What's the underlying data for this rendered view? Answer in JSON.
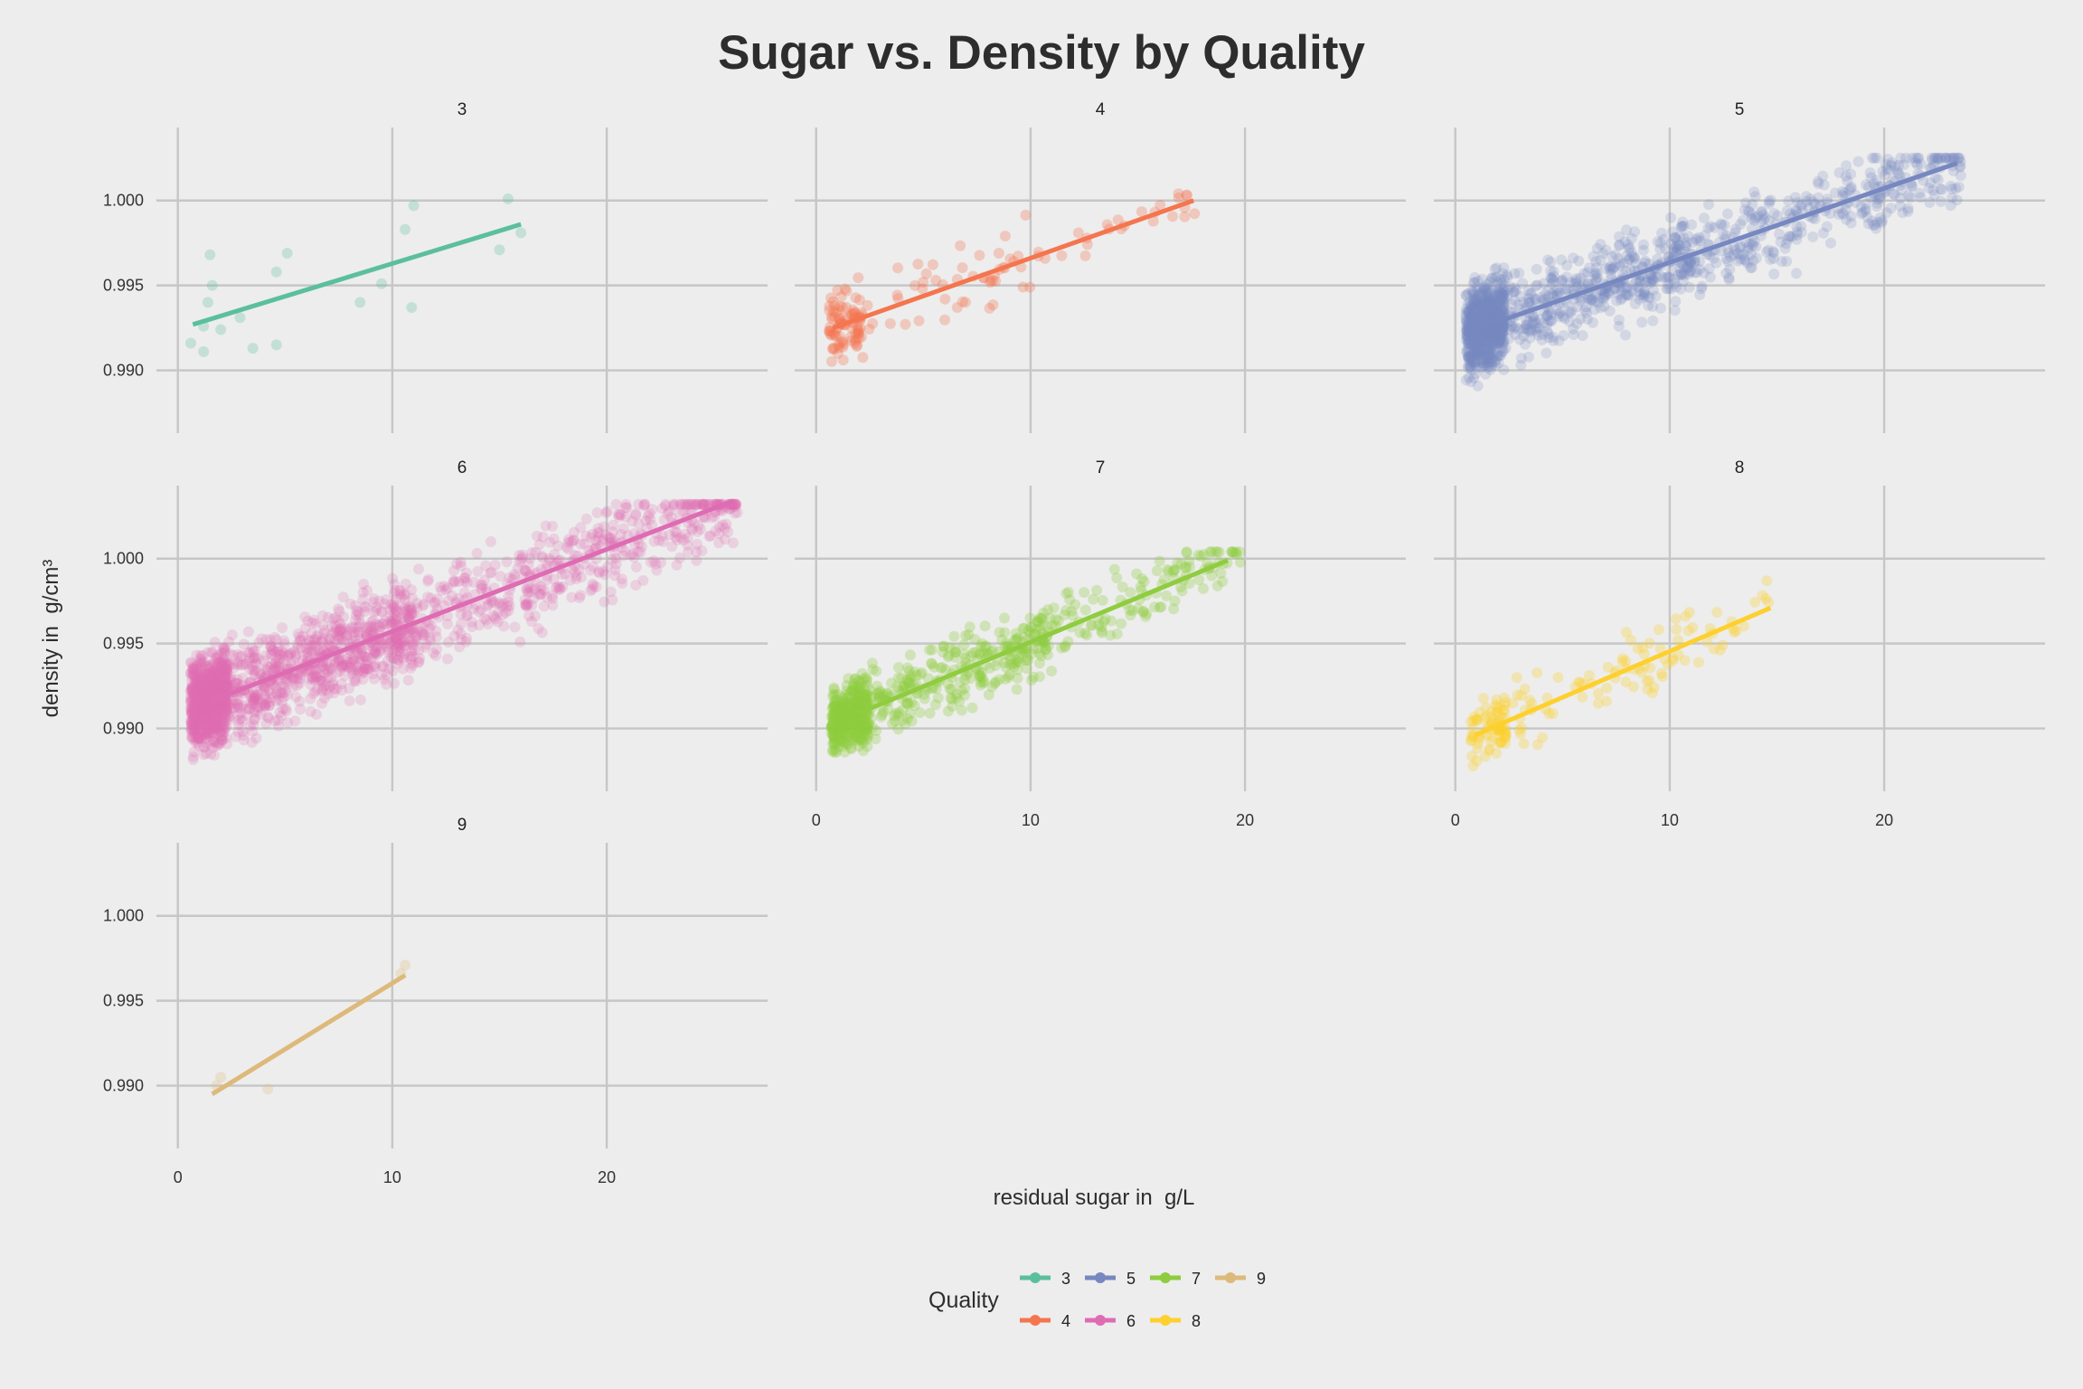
{
  "chart_data": {
    "type": "scatter",
    "title": "Sugar vs. Density by Quality",
    "xlabel": "residual sugar in  g/L",
    "ylabel": "density in  g/cm³",
    "xlim": [
      -1,
      27.5
    ],
    "ylim": [
      0.9863,
      1.0043
    ],
    "x_ticks": [
      0,
      10,
      20
    ],
    "y_ticks": [
      0.99,
      0.995,
      1.0
    ],
    "y_tick_labels": [
      "0.990",
      "0.995",
      "1.000"
    ],
    "grid": true,
    "legend": {
      "title": "Quality",
      "position": "bottom"
    },
    "series": [
      {
        "name": "3",
        "color": "#5bbf9c",
        "point_count": 20,
        "fit": {
          "x": [
            0.7,
            16.0
          ],
          "y": [
            0.9927,
            0.9986
          ]
        },
        "point_clusters": [
          {
            "x": [
              0.6,
              16.3
            ],
            "y": [
              0.9907,
              1.0003
            ],
            "density": 1
          }
        ],
        "points": [
          [
            0.6,
            0.9916
          ],
          [
            1.2,
            0.9911
          ],
          [
            1.6,
            0.995
          ],
          [
            1.5,
            0.9968
          ],
          [
            1.4,
            0.994
          ],
          [
            1.2,
            0.9926
          ],
          [
            2.0,
            0.9924
          ],
          [
            2.9,
            0.9931
          ],
          [
            3.5,
            0.9913
          ],
          [
            4.6,
            0.9958
          ],
          [
            5.1,
            0.9969
          ],
          [
            4.6,
            0.9915
          ],
          [
            8.5,
            0.994
          ],
          [
            9.5,
            0.9951
          ],
          [
            10.6,
            0.9983
          ],
          [
            11.0,
            0.9997
          ],
          [
            10.9,
            0.9937
          ],
          [
            15.0,
            0.9971
          ],
          [
            15.4,
            1.0001
          ],
          [
            16.0,
            0.9981
          ]
        ]
      },
      {
        "name": "4",
        "color": "#f4754e",
        "point_count": 163,
        "fit": {
          "x": [
            0.8,
            17.6
          ],
          "y": [
            0.9925,
            1.0
          ]
        },
        "point_clusters": [
          {
            "x": [
              0.6,
              2.2
            ],
            "y": [
              0.9892,
              0.9975
            ],
            "density": 0.55
          },
          {
            "x": [
              2.0,
              10.5
            ],
            "y": [
              0.9905,
              0.9995
            ],
            "density": 0.3
          },
          {
            "x": [
              10.0,
              17.8
            ],
            "y": [
              0.996,
              1.0004
            ],
            "density": 0.15
          }
        ]
      },
      {
        "name": "5",
        "color": "#7787c0",
        "point_count": 1457,
        "fit": {
          "x": [
            0.7,
            23.4
          ],
          "y": [
            0.9923,
            1.0022
          ]
        },
        "point_clusters": [
          {
            "x": [
              0.5,
              2.3
            ],
            "y": [
              0.9873,
              0.9962
            ],
            "density": 0.45
          },
          {
            "x": [
              2.0,
              11.0
            ],
            "y": [
              0.9895,
              0.9985
            ],
            "density": 0.3
          },
          {
            "x": [
              10.0,
              23.6
            ],
            "y": [
              0.994,
              1.0025
            ],
            "density": 0.25
          }
        ]
      },
      {
        "name": "6",
        "color": "#de6cb3",
        "point_count": 2198,
        "fit": {
          "x": [
            1.5,
            25.9
          ],
          "y": [
            0.9916,
            1.0034
          ]
        },
        "point_clusters": [
          {
            "x": [
              0.6,
              2.3
            ],
            "y": [
              0.9876,
              0.9965
            ],
            "density": 0.4
          },
          {
            "x": [
              2.0,
              11.0
            ],
            "y": [
              0.9885,
              0.9985
            ],
            "density": 0.35
          },
          {
            "x": [
              10.0,
              26.1
            ],
            "y": [
              0.9935,
              1.0032
            ],
            "density": 0.25
          }
        ]
      },
      {
        "name": "7",
        "color": "#8fcc3f",
        "point_count": 880,
        "fit": {
          "x": [
            2.0,
            19.2
          ],
          "y": [
            0.9909,
            0.9999
          ]
        },
        "point_clusters": [
          {
            "x": [
              0.7,
              2.4
            ],
            "y": [
              0.9873,
              0.994
            ],
            "density": 0.5
          },
          {
            "x": [
              2.0,
              11.0
            ],
            "y": [
              0.9885,
              0.9965
            ],
            "density": 0.35
          },
          {
            "x": [
              10.0,
              19.8
            ],
            "y": [
              0.9935,
              1.0004
            ],
            "density": 0.15
          }
        ]
      },
      {
        "name": "8",
        "color": "#fdd02e",
        "point_count": 175,
        "fit": {
          "x": [
            0.9,
            14.7
          ],
          "y": [
            0.9896,
            0.9971
          ]
        },
        "point_clusters": [
          {
            "x": [
              0.7,
              2.4
            ],
            "y": [
              0.9871,
              0.9935
            ],
            "density": 0.45
          },
          {
            "x": [
              2.0,
              10.5
            ],
            "y": [
              0.9885,
              0.996
            ],
            "density": 0.4
          },
          {
            "x": [
              10.0,
              15.0
            ],
            "y": [
              0.992,
              1.0006
            ],
            "density": 0.15
          }
        ]
      },
      {
        "name": "9",
        "color": "#ddb97a",
        "point_count": 5,
        "fit": {
          "x": [
            1.6,
            10.6
          ],
          "y": [
            0.9895,
            0.9965
          ]
        },
        "point_clusters": [
          {
            "x": [
              1.6,
              10.7
            ],
            "y": [
              0.9898,
              0.9971
            ],
            "density": 1
          }
        ],
        "points": [
          [
            2.0,
            0.9905
          ],
          [
            1.8,
            0.99
          ],
          [
            4.2,
            0.9898
          ],
          [
            10.6,
            0.9971
          ],
          [
            10.4,
            0.9966
          ]
        ]
      }
    ]
  }
}
